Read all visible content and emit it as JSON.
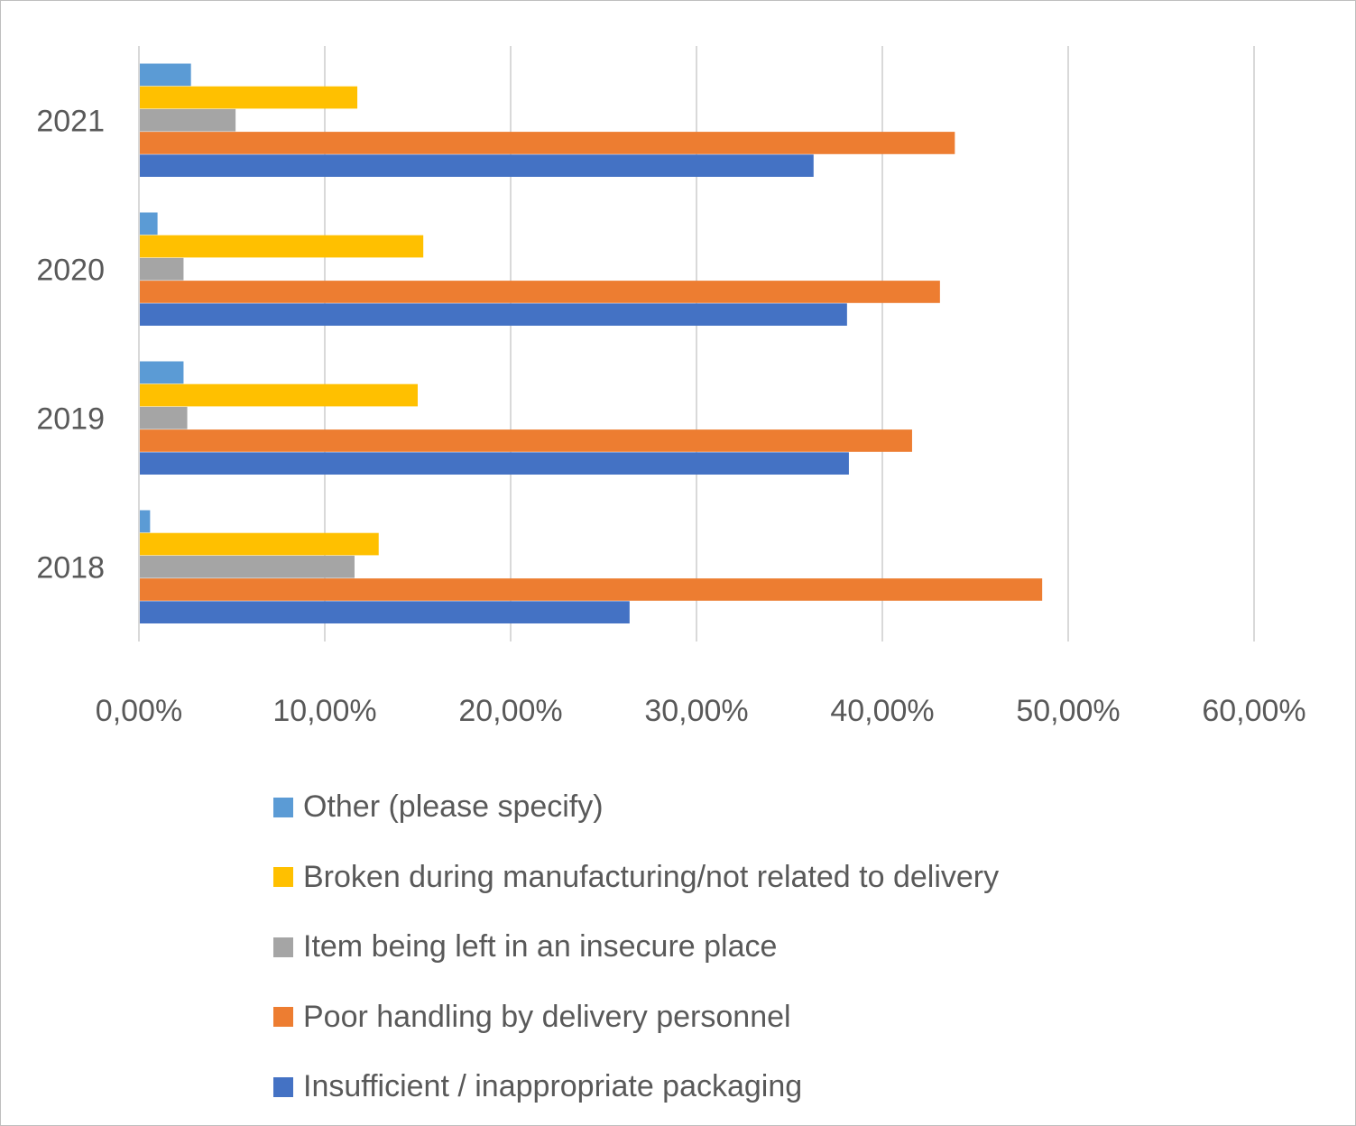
{
  "chart_data": {
    "type": "bar",
    "orientation": "horizontal",
    "categories": [
      "2018",
      "2019",
      "2020",
      "2021"
    ],
    "series": [
      {
        "name": "Insufficient / inappropriate packaging",
        "color": "#4472C4",
        "values": [
          26.4,
          38.2,
          38.1,
          36.3
        ]
      },
      {
        "name": "Poor handling by delivery personnel",
        "color": "#ED7D31",
        "values": [
          48.6,
          41.6,
          43.1,
          43.9
        ]
      },
      {
        "name": "Item being left in an insecure place",
        "color": "#A5A5A5",
        "values": [
          11.6,
          2.6,
          2.4,
          5.2
        ]
      },
      {
        "name": "Broken during manufacturing/not related to delivery",
        "color": "#FFC000",
        "values": [
          12.9,
          15.0,
          15.3,
          11.75
        ]
      },
      {
        "name": "Other (please specify)",
        "color": "#5B9BD5",
        "values": [
          0.6,
          2.4,
          1.0,
          2.8
        ]
      }
    ],
    "xlim": [
      0,
      60
    ],
    "xticks": [
      "0,00%",
      "10,00%",
      "20,00%",
      "30,00%",
      "40,00%",
      "50,00%",
      "60,00%"
    ],
    "grid": true,
    "legend_position": "bottom",
    "title": "",
    "xlabel": "",
    "ylabel": ""
  }
}
